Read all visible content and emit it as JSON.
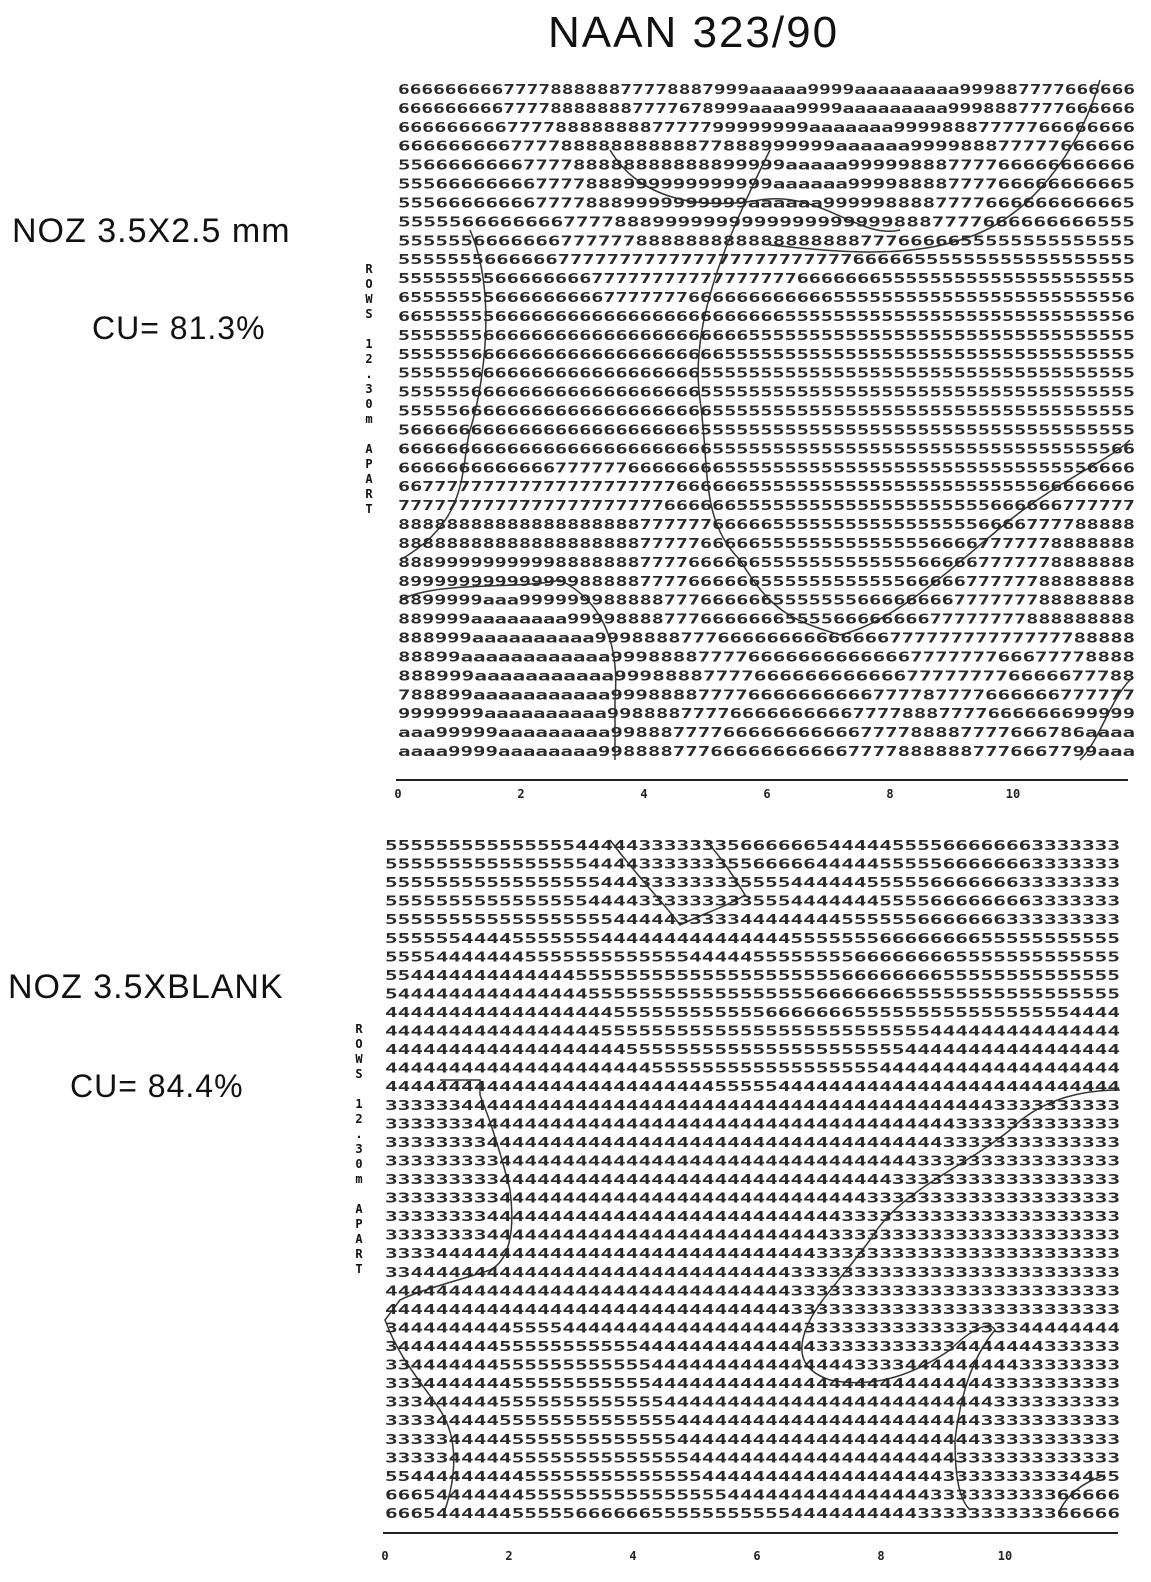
{
  "header": {
    "title": "NAAN 323/90"
  },
  "panels": [
    {
      "nozzle": "NOZ 3.5X2.5 mm",
      "cu": "CU= 81.3%",
      "side_label": "ROWS 12.30m APART",
      "rows": [
        "666666666777788888877778887999aaaaa9999aaaaaaaaa999887777666666",
        "666666666777788888887777678999aaaa9999aaaaaaaaa9998887777666666",
        "6666666667777888888887777799999999aaaaaaa99998887777766666666",
        "66666666677778888888888877888999999aaaaaa999988877777666666",
        "5566666666777788888888888899999aaaaa99999888777766666666666",
        "555666666667777888999999999999aaaaaa99998888777766666666665",
        "5556666666677778889999999999aaaaaa9999988887777666666666665",
        "5555566666666777788899999999999999999998887777666666666555",
        "55555566666667777778888888888888888887776666655555555555555",
        "555555566666677777777777777777777777766666555555555555555555",
        "5555555566666666777777777777777776666666555555555555555555555",
        "6555555566666666677777776666666666665555555555555555555555556",
        "6655555566666666666666666666666655555555555555555555555555556",
        "5555555666666666666666666666655555555555555555555555555555555",
        "5555556666666666666666666665555555555555555555555555555555555",
        "5555556666666666666666666555555555555555555555555555555555555",
        "5555556666666666666666666555555555555555555555555555555555555",
        "5555566666666666666666666655555555555555555555555555555555555",
        "5666666666666666666666666555555555555555555555555555555555555",
        "6666666666666666666666666655555555555555555555555555555555566",
        "6666666666666777777666666665555555555555555555555555555556666",
        "6677777777777777777777766666655555555555555555555555566666666",
        "7777777777777777777777666666555555555555555555555666666777777",
        "8888888888888888888877777766666555555555555555556666777788888",
        "8888888888888888888877777666665555555555555566667777778888888",
        "8889999999999888888877776666665555555555555666667777778888888",
        "8999999999999998888877776666665555555555556666677777788888888",
        "8899999aaa999999988888777666666555555566666666777777788888888",
        "889999aaaaaaaa99998888777666666655556666666677777777888888888",
        "888999aaaaaaaaaa99988887776666666666666677777777777777788888",
        "88899aaaaaaaaaaaa999888877776666666666666777777766677778888",
        "888999aaaaaaaaaaa99988887777666666666666777777776666677788",
        "788899aaaaaaaaaaa999888877776666666666777787777666666777777",
        "9999999aaaaaaaaaa9988887777666666666677778887777666666699999",
        "aaa99999aaaaaaaaa99888777766666666666777788887777666786aaaa",
        "aaaa9999aaaaaaaa9988887776666666666677778888887776667799aaa"
      ],
      "axis_ticks": [
        "0",
        "2",
        "4",
        "6",
        "8",
        "10"
      ]
    },
    {
      "nozzle": "NOZ 3.5XBLANK",
      "cu": "CU= 84.4%",
      "side_label": "ROWS 12.30m APART",
      "rows": [
        "5555555555555554444433333335666666544444555566666663333333",
        "5555555555555555444433333335566666444445555566666663333333",
        "5555555555555555544433333333555544444455555666666633333333",
        "5555555555555555444433333333355544444445555666666663333333",
        "5555555555555555554444433333444444445555556666666333333333",
        "5555554444555555544444444444444455555556666666655555555555",
        "5555444444455555555555554444455555555666666665555555555555",
        "5544444444444445555555555555555555556666666655555555555555",
        "5444444444444444555555555555555555666666655555555555555555",
        "4444444444444444445555555555556666666555555555555555554444",
        "4444444444444444455555555555555555555555555444444444444444",
        "4444444444444444444555555555555555555555544444444444444444",
        "4444444444444444444445555555555555555554444444444444444444",
        "4444444444444444444444444455555444444444444444444444444444",
        "3333334444444444444444444444444444444444444444443333333333",
        "3333333444444444444444444444444444444444444443333333333333",
        "3333333344444444444444444444444444444444444433333333333333",
        "3333333334444444444444444444444444444444443333333333333333",
        "3333333334444444444444444444444444444444333333333333333333",
        "3333333334444444444444444444444444444433333333333333333333",
        "3333333344444444444444444444444444443333333333333333333333",
        "3333333344444444444444444444444444433333333333333333333333",
        "3333444444444444444444444444444444333333333333333333333333",
        "3344444444444444444444444444444433333333333333333333333333",
        "4444444444444444444444444444444433333333333333333333333333",
        "4444444444444444444444444444444433333333333333333333333333",
        "3444444444555544444444444444444443333333333333333344444444",
        "3444444445555555555544444444444444333333333334444444333333",
        "3344444445555555555554444444444444444333344444444433333333",
        "3334444444555555555554444444444444444444444444443333333333",
        "3334444445555555555555444444444444444444444444443333333333",
        "3333444445555555555555544444444444444444444444433333333333",
        "3333344444555555555555544444444444444444444444433333333333",
        "3333344444555555555555554444444444444444444443333333333333",
        "5544444444455555555555555444444444444444444433333333334455",
        "6665444444455555555555555554444444444444444333333333366666",
        "6665444444555556666665555555555544444444443333333333366666"
      ],
      "axis_ticks": [
        "0",
        "2",
        "4",
        "6",
        "8",
        "10"
      ]
    }
  ]
}
